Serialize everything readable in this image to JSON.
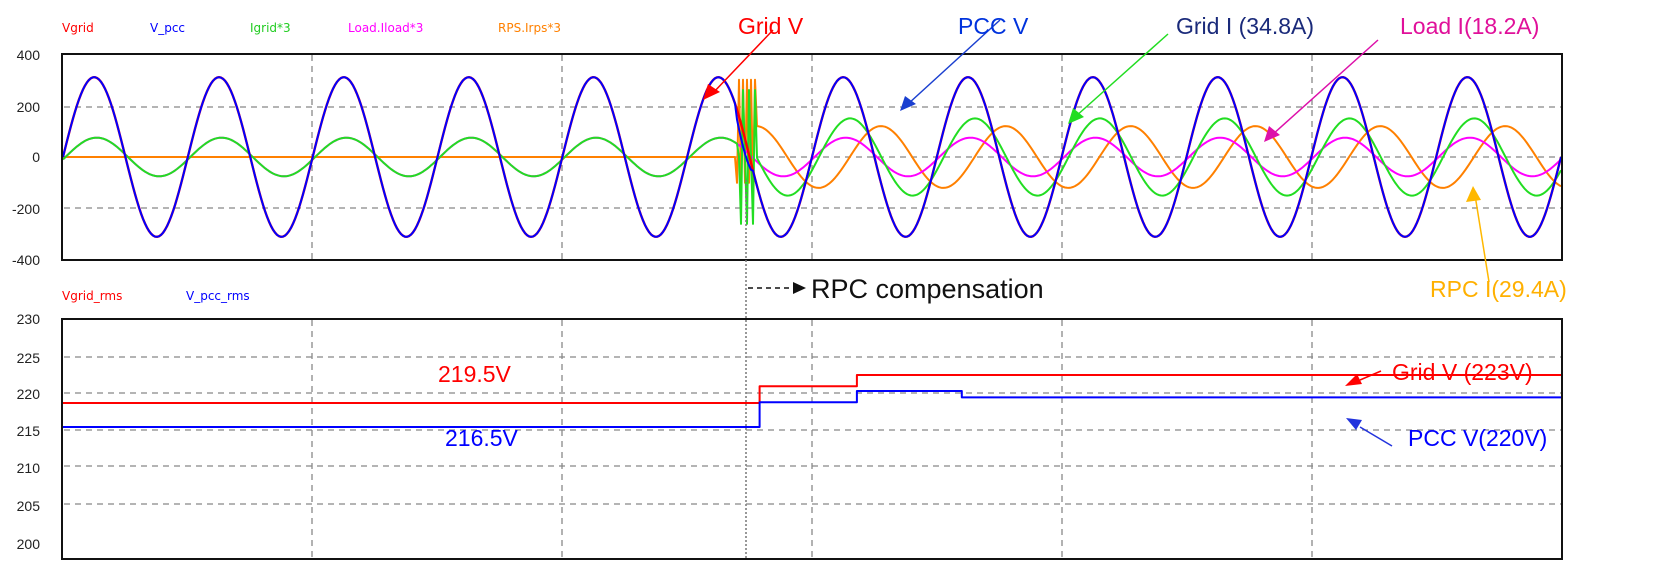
{
  "chart_data": [
    {
      "type": "line",
      "title": "",
      "panel": "top",
      "xlabel": "",
      "ylabel": "",
      "ylim": [
        -400,
        400
      ],
      "yticks": [
        400,
        200,
        0,
        -200,
        -400
      ],
      "grid": true,
      "legend_position": "top-left",
      "series": [
        {
          "name": "Vgrid",
          "color": "#ff0000",
          "amplitude": 310,
          "cycles": 12,
          "description": "sinusoid, peak ~310"
        },
        {
          "name": "V_pcc",
          "color": "#0000ff",
          "amplitude": 310,
          "cycles": 12,
          "description": "sinusoid, peak ~310, overlaps Vgrid"
        },
        {
          "name": "Igrid*3",
          "color": "#00dd00",
          "amplitude_before": 70,
          "amplitude_after": 150,
          "description": "equals load current before compensation, ~150 peak after, in phase with voltage"
        },
        {
          "name": "Load.Iload*3",
          "color": "#ff00ff",
          "amplitude": 75,
          "description": "sinusoid ~75 peak, lagging"
        },
        {
          "name": "RPS.Irps*3",
          "color": "#ff8000",
          "amplitude_before": 0,
          "amplitude_after": 120,
          "description": "zero before compensation, ~120 peak after"
        }
      ],
      "event_x_fraction": 0.456,
      "annotations": [
        {
          "text": "Grid V",
          "color": "#ff0000"
        },
        {
          "text": "PCC V",
          "color": "#0033dd"
        },
        {
          "text": "Grid I (34.8A)",
          "color": "#1a2a7a"
        },
        {
          "text": "Load I(18.2A)",
          "color": "#e0109a"
        },
        {
          "text": "RPC I(29.4A)",
          "color": "#ffb000"
        }
      ]
    },
    {
      "type": "line",
      "title": "",
      "panel": "bottom",
      "xlabel": "",
      "ylabel": "",
      "ylim": [
        200,
        230
      ],
      "yticks": [
        230,
        225,
        220,
        215,
        210,
        205,
        200
      ],
      "grid": true,
      "legend_position": "top-left",
      "series": [
        {
          "name": "Vgrid_rms",
          "color": "#ff0000",
          "x_fraction": [
            0,
            0.465,
            0.465,
            0.53,
            0.53,
            1.0
          ],
          "values": [
            219.5,
            219.5,
            221.6,
            221.6,
            223,
            223
          ]
        },
        {
          "name": "V_pcc_rms",
          "color": "#0000ff",
          "x_fraction": [
            0,
            0.465,
            0.465,
            0.53,
            0.53,
            0.6,
            0.6,
            1.0
          ],
          "values": [
            216.5,
            216.5,
            219.6,
            219.6,
            221,
            221,
            220.2,
            220.2
          ]
        }
      ],
      "annotations": [
        {
          "text": "219.5V",
          "color": "#ff0000"
        },
        {
          "text": "216.5V",
          "color": "#0000ff"
        },
        {
          "text": "Grid V (223V)",
          "color": "#ff0000"
        },
        {
          "text": "PCC V(220V)",
          "color": "#0000ff"
        }
      ]
    }
  ],
  "top_panel": {
    "legend": [
      {
        "label": "Vgrid",
        "color": "#ff0000"
      },
      {
        "label": "V_pcc",
        "color": "#0000ff"
      },
      {
        "label": "Igrid*3",
        "color": "#22cc22"
      },
      {
        "label": "Load.Iload*3",
        "color": "#ff00ff"
      },
      {
        "label": "RPS.Irps*3",
        "color": "#ff8000"
      }
    ],
    "yticks": [
      "400",
      "200",
      "0",
      "-200",
      "-400"
    ],
    "annotations": {
      "grid_v": "Grid V",
      "pcc_v": "PCC V",
      "grid_i": "Grid I (34.8A)",
      "load_i": "Load I(18.2A)",
      "rpc_i": "RPC I(29.4A)"
    }
  },
  "event_label": "RPC compensation",
  "bottom_panel": {
    "legend": [
      {
        "label": "Vgrid_rms",
        "color": "#ff0000"
      },
      {
        "label": "V_pcc_rms",
        "color": "#0000ff"
      }
    ],
    "yticks": [
      "230",
      "225",
      "220",
      "215",
      "210",
      "205",
      "200"
    ],
    "annotations": {
      "grid_before": "219.5V",
      "pcc_before": "216.5V",
      "grid_after": "Grid V (223V)",
      "pcc_after": "PCC V(220V)"
    }
  }
}
